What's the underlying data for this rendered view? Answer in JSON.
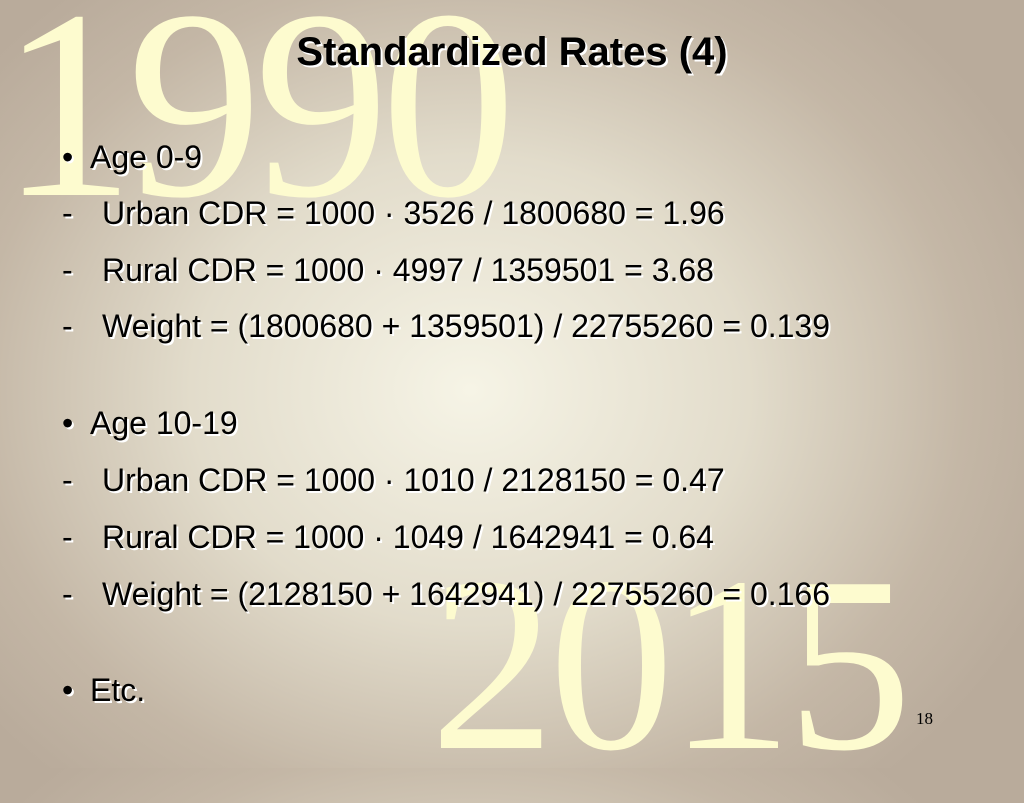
{
  "decoration": {
    "top": "1990",
    "bottom": "2015"
  },
  "title": "Standardized Rates (4)",
  "items": [
    {
      "marker": "•",
      "text": "Age 0-9"
    },
    {
      "marker": "-",
      "text": "Urban CDR = 1000 · 3526 / 1800680 = 1.96"
    },
    {
      "marker": "-",
      "text": "Rural CDR = 1000 · 4997 / 1359501 = 3.68"
    },
    {
      "marker": "-",
      "text": "Weight = (1800680 + 1359501) / 22755260 = 0.139"
    },
    {
      "marker": "•",
      "text": "Age 10-19"
    },
    {
      "marker": "-",
      "text": "Urban CDR = 1000 · 1010 / 2128150 = 0.47"
    },
    {
      "marker": "-",
      "text": "Rural CDR = 1000 · 1049 / 1642941 = 0.64"
    },
    {
      "marker": "-",
      "text": "Weight = (2128150 + 1642941) / 22755260 = 0.166"
    },
    {
      "marker": "•",
      "text": "Etc."
    }
  ],
  "page_number": "18"
}
